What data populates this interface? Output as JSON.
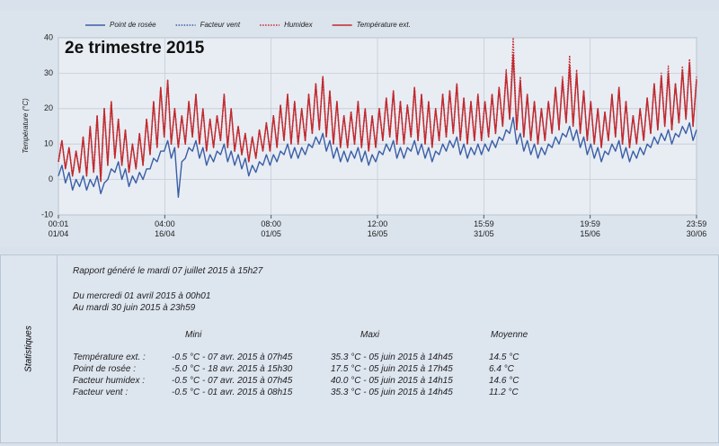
{
  "chart_data": {
    "type": "line",
    "title": "2e trimestre 2015",
    "ylabel": "Température (°C)",
    "ylim": [
      -10,
      40
    ],
    "yticks": [
      -10,
      0,
      10,
      20,
      30,
      40
    ],
    "xlim": [
      0,
      91
    ],
    "xticks": [
      {
        "value": 0,
        "label": "00:01\n01/04"
      },
      {
        "value": 15.17,
        "label": "04:00\n16/04"
      },
      {
        "value": 30.33,
        "label": "08:00\n01/05"
      },
      {
        "value": 45.5,
        "label": "12:00\n16/05"
      },
      {
        "value": 60.67,
        "label": "15:59\n31/05"
      },
      {
        "value": 75.83,
        "label": "19:59\n15/06"
      },
      {
        "value": 91,
        "label": "23:59\n30/06"
      }
    ],
    "grid": true,
    "legend": "top",
    "series": [
      {
        "name": "Point de rosée",
        "color": "#3a5ea6",
        "dash": "solid",
        "values": [
          1,
          4,
          -1,
          2,
          -3,
          0,
          -2,
          1,
          -3,
          0,
          -2,
          1,
          -4,
          -1,
          0,
          3,
          2,
          5,
          0,
          3,
          -2,
          1,
          -1,
          2,
          0,
          3,
          3,
          6,
          5,
          8,
          8,
          11,
          6,
          9,
          -5,
          5,
          6,
          9,
          8,
          11,
          6,
          9,
          4,
          7,
          5,
          8,
          7,
          10,
          5,
          8,
          4,
          7,
          3,
          6,
          1,
          4,
          2,
          5,
          4,
          7,
          4,
          7,
          5,
          8,
          7,
          10,
          6,
          9,
          6,
          9,
          7,
          10,
          9,
          12,
          10,
          13,
          8,
          11,
          6,
          9,
          5,
          8,
          5,
          8,
          6,
          9,
          5,
          8,
          4,
          7,
          5,
          8,
          7,
          10,
          8,
          11,
          6,
          9,
          6,
          9,
          8,
          11,
          7,
          10,
          6,
          9,
          5,
          8,
          7,
          10,
          8,
          11,
          9,
          12,
          7,
          10,
          6,
          9,
          7,
          10,
          7,
          10,
          8,
          11,
          9,
          12,
          11,
          14,
          13,
          17.5,
          10,
          13,
          8,
          11,
          7,
          10,
          6,
          9,
          7,
          10,
          9,
          12,
          10,
          13,
          12,
          15,
          11,
          14,
          9,
          12,
          7,
          10,
          6,
          9,
          5,
          8,
          7,
          10,
          8,
          11,
          6,
          9,
          5,
          8,
          6,
          9,
          7,
          10,
          9,
          12,
          10,
          13,
          11,
          14,
          10,
          13,
          12,
          15,
          13,
          16,
          11,
          14
        ]
      },
      {
        "name": "Facteur vent",
        "color": "#3a5ea6",
        "dash": "dotted",
        "values": [
          5,
          11,
          3,
          9,
          1,
          8,
          2,
          12,
          1,
          15,
          2,
          18,
          -0.5,
          20,
          4,
          22,
          6,
          17,
          4,
          14,
          2,
          10,
          3,
          13,
          4,
          17,
          7,
          22,
          9,
          26,
          12,
          28,
          10,
          20,
          9,
          18,
          10,
          22,
          12,
          24,
          10,
          20,
          8,
          17,
          9,
          18,
          11,
          24,
          9,
          20,
          8,
          15,
          7,
          13,
          5,
          12,
          6,
          14,
          8,
          16,
          8,
          18,
          9,
          21,
          11,
          24,
          10,
          22,
          10,
          20,
          11,
          24,
          13,
          27,
          14,
          29,
          12,
          25,
          10,
          22,
          9,
          18,
          9,
          19,
          10,
          22,
          9,
          20,
          8,
          18,
          9,
          20,
          11,
          23,
          12,
          25,
          10,
          22,
          10,
          21,
          12,
          26,
          11,
          24,
          10,
          22,
          9,
          20,
          11,
          24,
          12,
          25,
          13,
          27,
          11,
          23,
          10,
          22,
          11,
          24,
          11,
          22,
          12,
          24,
          13,
          26,
          15,
          30,
          17,
          35.3,
          14,
          28,
          12,
          24,
          11,
          22,
          10,
          20,
          11,
          22,
          13,
          26,
          14,
          28,
          16,
          32,
          15,
          30,
          13,
          25,
          11,
          22,
          10,
          20,
          9,
          19,
          11,
          24,
          12,
          26,
          10,
          22,
          9,
          18,
          10,
          20,
          11,
          23,
          13,
          27,
          14,
          29,
          15,
          30,
          14,
          27,
          16,
          31,
          17,
          33,
          15,
          28
        ]
      },
      {
        "name": "Humidex",
        "color": "#c4282c",
        "dash": "dotted",
        "values": [
          5,
          11,
          3,
          9,
          1,
          8,
          2,
          12,
          1,
          15,
          2,
          18,
          -0.5,
          20,
          4,
          22,
          6,
          17,
          4,
          14,
          2,
          10,
          3,
          13,
          4,
          17,
          7,
          22,
          9,
          26,
          12,
          28,
          10,
          20,
          9,
          18,
          10,
          22,
          12,
          24,
          10,
          20,
          8,
          17,
          9,
          18,
          11,
          24,
          9,
          20,
          8,
          15,
          7,
          13,
          5,
          12,
          6,
          14,
          8,
          16,
          8,
          18,
          9,
          21,
          11,
          24,
          10,
          22,
          10,
          20,
          11,
          24,
          13,
          27,
          14,
          29,
          12,
          25,
          10,
          22,
          9,
          18,
          9,
          19,
          10,
          22,
          9,
          20,
          8,
          18,
          9,
          20,
          11,
          23,
          12,
          25,
          10,
          22,
          10,
          21,
          12,
          26,
          11,
          24,
          10,
          22,
          9,
          20,
          11,
          24,
          12,
          25,
          13,
          27,
          11,
          23,
          10,
          22,
          11,
          24,
          11,
          22,
          12,
          24,
          13,
          26,
          15,
          31,
          17,
          40,
          14,
          29,
          12,
          24,
          11,
          22,
          10,
          20,
          11,
          22,
          13,
          26,
          14,
          29,
          16,
          35,
          15,
          31,
          13,
          25,
          11,
          22,
          10,
          20,
          9,
          19,
          11,
          24,
          12,
          26,
          10,
          22,
          9,
          18,
          10,
          20,
          11,
          23,
          13,
          27,
          14,
          30,
          15,
          32,
          14,
          27,
          16,
          32,
          17,
          34,
          15,
          29
        ]
      },
      {
        "name": "Température ext.",
        "color": "#c4282c",
        "dash": "solid",
        "values": [
          5,
          11,
          3,
          9,
          1,
          8,
          2,
          12,
          1,
          15,
          2,
          18,
          -0.5,
          20,
          4,
          22,
          6,
          17,
          4,
          14,
          2,
          10,
          3,
          13,
          4,
          17,
          7,
          22,
          9,
          26,
          12,
          28,
          10,
          20,
          9,
          18,
          10,
          22,
          12,
          24,
          10,
          20,
          8,
          17,
          9,
          18,
          11,
          24,
          9,
          20,
          8,
          15,
          7,
          13,
          5,
          12,
          6,
          14,
          8,
          16,
          8,
          18,
          9,
          21,
          11,
          24,
          10,
          22,
          10,
          20,
          11,
          24,
          13,
          27,
          14,
          29,
          12,
          25,
          10,
          22,
          9,
          18,
          9,
          19,
          10,
          22,
          9,
          20,
          8,
          18,
          9,
          20,
          11,
          23,
          12,
          25,
          10,
          22,
          10,
          21,
          12,
          26,
          11,
          24,
          10,
          22,
          9,
          20,
          11,
          24,
          12,
          25,
          13,
          27,
          11,
          23,
          10,
          22,
          11,
          24,
          11,
          22,
          12,
          24,
          13,
          26,
          15,
          30,
          17,
          35.3,
          14,
          28,
          12,
          24,
          11,
          22,
          10,
          20,
          11,
          22,
          13,
          26,
          14,
          28,
          16,
          32,
          15,
          30,
          13,
          25,
          11,
          22,
          10,
          20,
          9,
          19,
          11,
          24,
          12,
          26,
          10,
          22,
          9,
          18,
          10,
          20,
          11,
          23,
          13,
          27,
          14,
          29,
          15,
          30,
          14,
          27,
          16,
          31,
          17,
          33,
          15,
          28
        ]
      }
    ]
  },
  "stats": {
    "side_label": "Statistiques",
    "generated": "Rapport généré le mardi 07 juillet 2015 à 15h27",
    "period_from": "Du mercredi 01 avril 2015 à 00h01",
    "period_to": "Au mardi 30 juin 2015 à 23h59",
    "headers": [
      "Mini",
      "Maxi",
      "Moyenne"
    ],
    "rows": [
      [
        "Température ext. :",
        "-0.5 °C - 07 avr. 2015 à 07h45",
        "35.3 °C - 05 juin 2015 à 14h45",
        "14.5 °C"
      ],
      [
        "Point de rosée :",
        "-5.0 °C - 18 avr. 2015 à 15h30",
        "17.5 °C - 05 juin 2015 à 17h45",
        "6.4 °C"
      ],
      [
        "Facteur humidex :",
        "-0.5 °C - 07 avr. 2015 à 07h45",
        "40.0 °C - 05 juin 2015 à 14h15",
        "14.6 °C"
      ],
      [
        "Facteur vent :",
        "-0.5 °C - 01 avr. 2015 à 08h15",
        "35.3 °C - 05 juin 2015 à 14h45",
        "11.2 °C"
      ]
    ]
  }
}
